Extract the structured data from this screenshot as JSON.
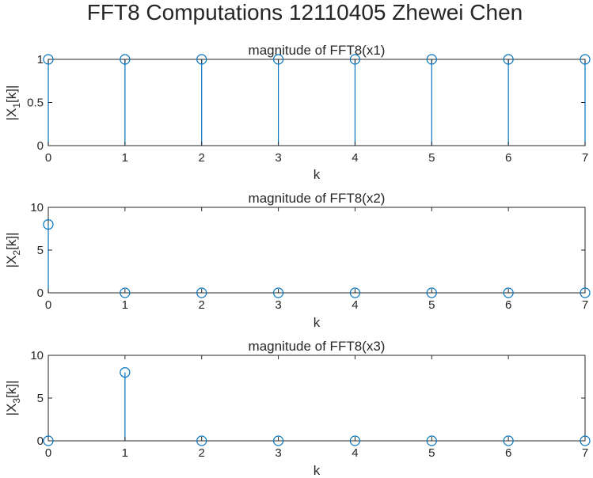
{
  "figure": {
    "title": "FFT8 Computations 12110405 Zhewei Chen",
    "series_color": "#0072BD",
    "axis_color": "#262626"
  },
  "chart_data": [
    {
      "type": "stem",
      "title": "magnitude of FFT8(x1)",
      "xlabel": "k",
      "ylabel_main": "|X",
      "ylabel_sub": "1",
      "ylabel_tail": "[k]|",
      "x": [
        0,
        1,
        2,
        3,
        4,
        5,
        6,
        7
      ],
      "values": [
        1,
        1,
        1,
        1,
        1,
        1,
        1,
        1
      ],
      "xlim": [
        0,
        7
      ],
      "ylim": [
        0,
        1
      ],
      "xticks": [
        "0",
        "1",
        "2",
        "3",
        "4",
        "5",
        "6",
        "7"
      ],
      "yticks": [
        "0",
        "0.5",
        "1"
      ],
      "ytick_values": [
        0,
        0.5,
        1
      ],
      "grid": false,
      "legend": "none"
    },
    {
      "type": "stem",
      "title": "magnitude of FFT8(x2)",
      "xlabel": "k",
      "ylabel_main": "|X",
      "ylabel_sub": "2",
      "ylabel_tail": "[k]|",
      "x": [
        0,
        1,
        2,
        3,
        4,
        5,
        6,
        7
      ],
      "values": [
        8,
        0,
        0,
        0,
        0,
        0,
        0,
        0
      ],
      "xlim": [
        0,
        7
      ],
      "ylim": [
        0,
        10
      ],
      "xticks": [
        "0",
        "1",
        "2",
        "3",
        "4",
        "5",
        "6",
        "7"
      ],
      "yticks": [
        "0",
        "5",
        "10"
      ],
      "ytick_values": [
        0,
        5,
        10
      ],
      "grid": false,
      "legend": "none"
    },
    {
      "type": "stem",
      "title": "magnitude of FFT8(x3)",
      "xlabel": "k",
      "ylabel_main": "|X",
      "ylabel_sub": "3",
      "ylabel_tail": "[k]|",
      "x": [
        0,
        1,
        2,
        3,
        4,
        5,
        6,
        7
      ],
      "values": [
        0,
        8,
        0,
        0,
        0,
        0,
        0,
        0
      ],
      "xlim": [
        0,
        7
      ],
      "ylim": [
        0,
        10
      ],
      "xticks": [
        "0",
        "1",
        "2",
        "3",
        "4",
        "5",
        "6",
        "7"
      ],
      "yticks": [
        "0",
        "5",
        "10"
      ],
      "ytick_values": [
        0,
        5,
        10
      ],
      "grid": false,
      "legend": "none"
    }
  ]
}
